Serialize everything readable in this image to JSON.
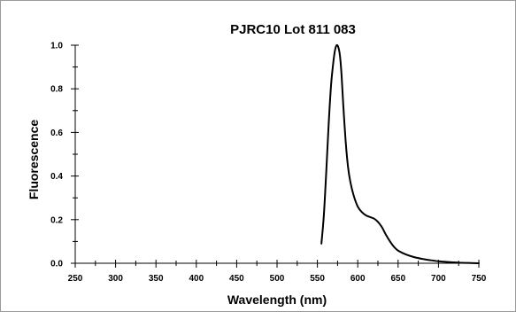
{
  "chart_data": {
    "type": "line",
    "title": "PJRC10  Lot 811 083",
    "xlabel": "Wavelength (nm)",
    "ylabel": "Fluorescence",
    "xlim": [
      250,
      750
    ],
    "ylim": [
      0,
      1.0
    ],
    "x_ticks": [
      250,
      300,
      350,
      400,
      450,
      500,
      550,
      600,
      650,
      700,
      750
    ],
    "y_ticks": [
      0.0,
      0.2,
      0.4,
      0.6,
      0.8,
      1.0
    ],
    "x_tick_labels": [
      "250",
      "300",
      "350",
      "400",
      "450",
      "500",
      "550",
      "600",
      "650",
      "700",
      "750"
    ],
    "y_tick_labels": [
      "0.0",
      "0.2",
      "0.4",
      "0.6",
      "0.8",
      "1.0"
    ],
    "grid": false,
    "legend": "none",
    "line_color": "#000000",
    "series": [
      {
        "x": [
          555,
          558,
          561,
          564,
          567,
          570,
          572,
          574,
          576,
          578,
          580,
          582,
          585,
          588,
          591,
          595,
          600,
          605,
          610,
          615,
          620,
          625,
          630,
          635,
          640,
          645,
          650,
          660,
          670,
          680,
          690,
          700,
          710,
          720,
          730,
          740,
          750
        ],
        "y": [
          0.09,
          0.22,
          0.42,
          0.64,
          0.82,
          0.93,
          0.98,
          1.0,
          0.99,
          0.95,
          0.86,
          0.73,
          0.56,
          0.44,
          0.37,
          0.31,
          0.26,
          0.235,
          0.22,
          0.212,
          0.205,
          0.19,
          0.165,
          0.13,
          0.1,
          0.075,
          0.058,
          0.04,
          0.028,
          0.02,
          0.014,
          0.009,
          0.006,
          0.004,
          0.002,
          0.001,
          0.0
        ]
      }
    ]
  }
}
